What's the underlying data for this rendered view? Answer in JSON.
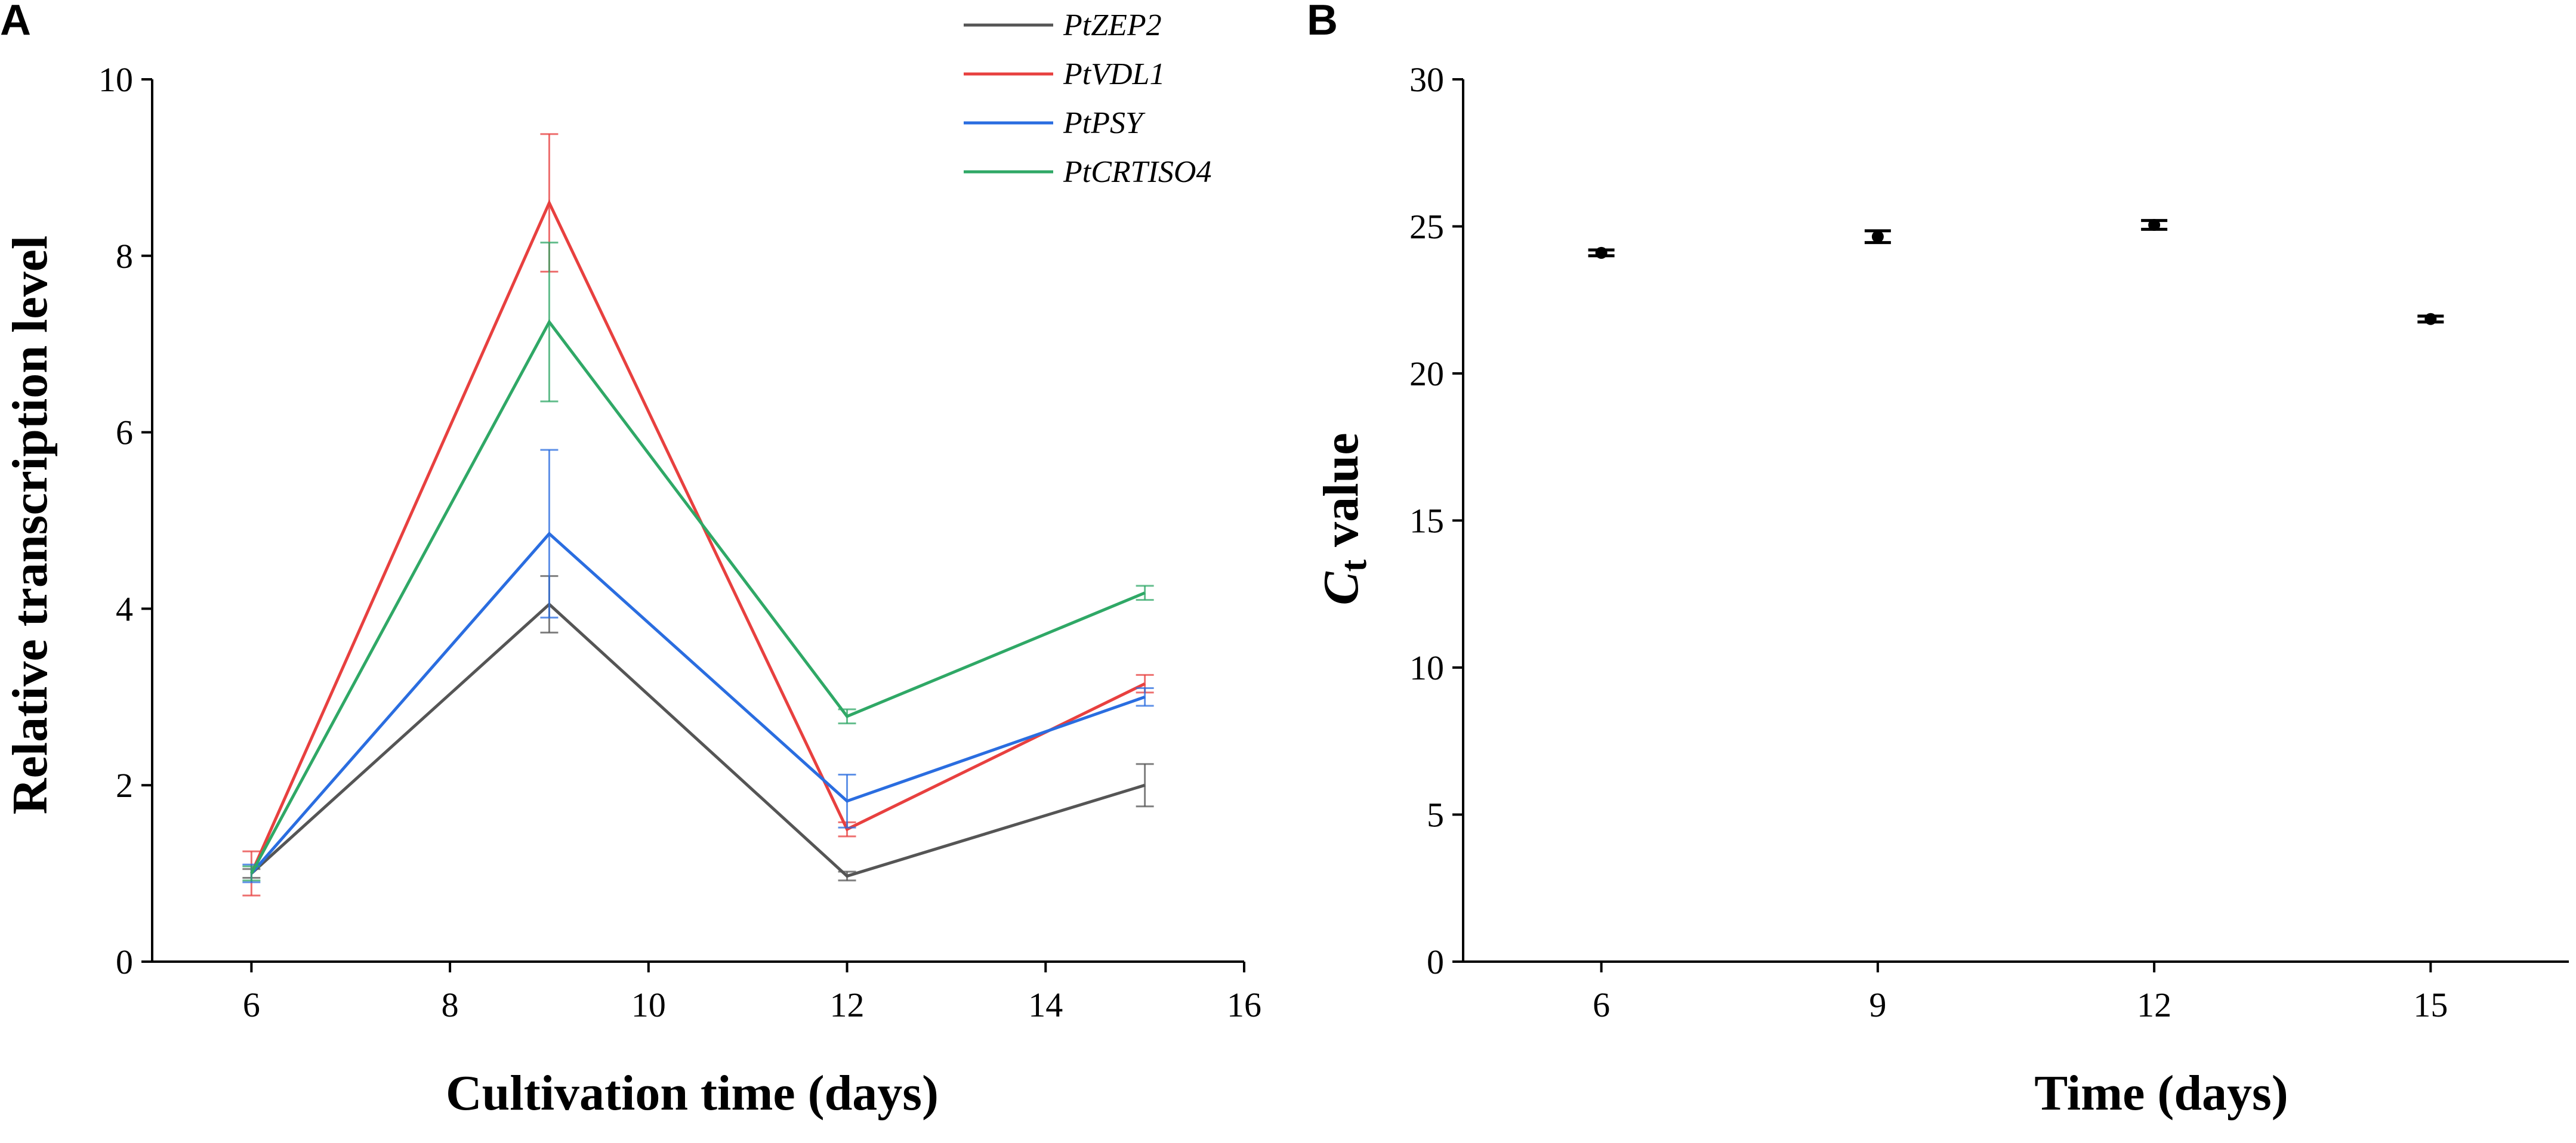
{
  "panels": {
    "a_label": "A",
    "b_label": "B"
  },
  "chart_data": [
    {
      "type": "line",
      "xlabel": "Cultivation time (days)",
      "ylabel": "Relative transcription level",
      "xlim": [
        5,
        16
      ],
      "ylim": [
        0,
        10
      ],
      "xticks": [
        6,
        8,
        10,
        12,
        14,
        16
      ],
      "yticks": [
        0,
        2,
        4,
        6,
        8,
        10
      ],
      "grid": false,
      "legend_position": "top-right",
      "x": [
        6,
        9,
        12,
        15
      ],
      "series": [
        {
          "name": "PtZEP2",
          "color": "#555555",
          "values": [
            1.0,
            4.05,
            0.97,
            2.0
          ],
          "errors": [
            0.05,
            0.32,
            0.05,
            0.24
          ]
        },
        {
          "name": "PtVDL1",
          "color": "#e8403f",
          "values": [
            1.0,
            8.6,
            1.5,
            3.15
          ],
          "errors": [
            0.25,
            0.78,
            0.08,
            0.1
          ]
        },
        {
          "name": "PtPSY",
          "color": "#2a6de0",
          "values": [
            1.0,
            4.85,
            1.82,
            3.0
          ],
          "errors": [
            0.1,
            0.95,
            0.3,
            0.1
          ]
        },
        {
          "name": "PtCRTISO4",
          "color": "#2fa866",
          "values": [
            1.0,
            7.25,
            2.78,
            4.18
          ],
          "errors": [
            0.08,
            0.9,
            0.08,
            0.08
          ]
        }
      ]
    },
    {
      "type": "scatter",
      "xlabel": "Time (days)",
      "ylabel_main": "C",
      "ylabel_sub": "t",
      "ylabel_rest": " value",
      "xlim": [
        4.5,
        16.5
      ],
      "ylim": [
        0,
        30
      ],
      "xticks": [
        6,
        9,
        12,
        15
      ],
      "yticks": [
        0,
        5,
        10,
        15,
        20,
        25,
        30
      ],
      "grid": false,
      "x": [
        6,
        9,
        12,
        15
      ],
      "values": [
        24.1,
        24.65,
        25.05,
        21.85
      ],
      "errors": [
        0.1,
        0.2,
        0.15,
        0.1
      ],
      "color": "#000000"
    }
  ]
}
